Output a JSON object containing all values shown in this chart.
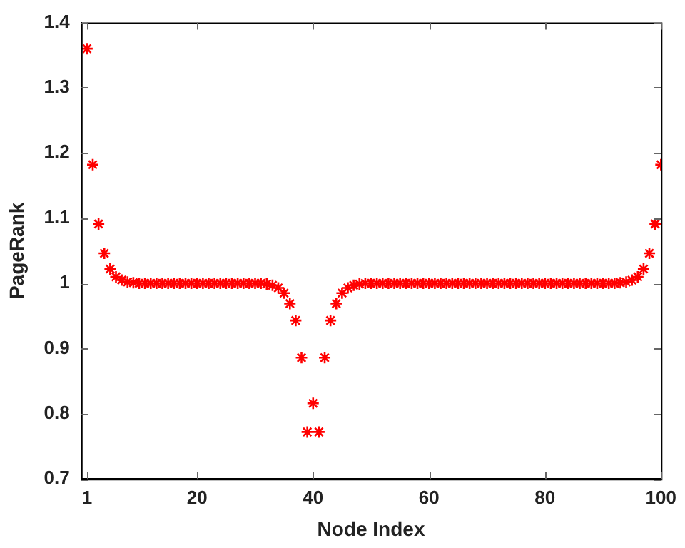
{
  "chart_data": {
    "type": "scatter",
    "xlabel": "Node Index",
    "ylabel": "PageRank",
    "marker": "cross",
    "x": [
      1,
      2,
      3,
      4,
      5,
      6,
      7,
      8,
      9,
      10,
      11,
      12,
      13,
      14,
      15,
      16,
      17,
      18,
      19,
      20,
      21,
      22,
      23,
      24,
      25,
      26,
      27,
      28,
      29,
      30,
      31,
      32,
      33,
      34,
      35,
      36,
      37,
      38,
      39,
      40,
      41,
      42,
      43,
      44,
      45,
      46,
      47,
      48,
      49,
      50,
      51,
      52,
      53,
      54,
      55,
      56,
      57,
      58,
      59,
      60,
      61,
      62,
      63,
      64,
      65,
      66,
      67,
      68,
      69,
      70,
      71,
      72,
      73,
      74,
      75,
      76,
      77,
      78,
      79,
      80,
      81,
      82,
      83,
      84,
      85,
      86,
      87,
      88,
      89,
      90,
      91,
      92,
      93,
      94,
      95,
      96,
      97,
      98,
      99,
      100
    ],
    "series": [
      {
        "color": "#ff0000",
        "values": [
          1.36,
          1.182,
          1.091,
          1.046,
          1.022,
          1.01,
          1.005,
          1.002,
          1.001,
          1,
          1,
          1,
          1,
          1,
          1,
          1,
          1,
          1,
          1,
          1,
          1,
          1,
          1,
          1,
          1,
          1,
          1,
          1,
          1,
          1,
          1,
          0.999,
          0.997,
          0.993,
          0.985,
          0.969,
          0.943,
          0.886,
          0.772,
          0.816,
          0.772,
          0.886,
          0.943,
          0.969,
          0.985,
          0.993,
          0.997,
          0.999,
          1,
          1,
          1,
          1,
          1,
          1,
          1,
          1,
          1,
          1,
          1,
          1,
          1,
          1,
          1,
          1,
          1,
          1,
          1,
          1,
          1,
          1,
          1,
          1,
          1,
          1,
          1,
          1,
          1,
          1,
          1,
          1,
          1,
          1,
          1,
          1,
          1,
          1,
          1,
          1,
          1,
          1,
          1,
          1,
          1.001,
          1.002,
          1.005,
          1.01,
          1.022,
          1.046,
          1.091,
          1.182
        ]
      }
    ],
    "xlim": [
      0,
      100
    ],
    "xticks": [
      1,
      20,
      40,
      60,
      80,
      100
    ],
    "ylim": [
      0.7,
      1.4
    ],
    "yticks": [
      0.7,
      0.8,
      0.9,
      1,
      1.1,
      1.2,
      1.3,
      1.4
    ]
  }
}
